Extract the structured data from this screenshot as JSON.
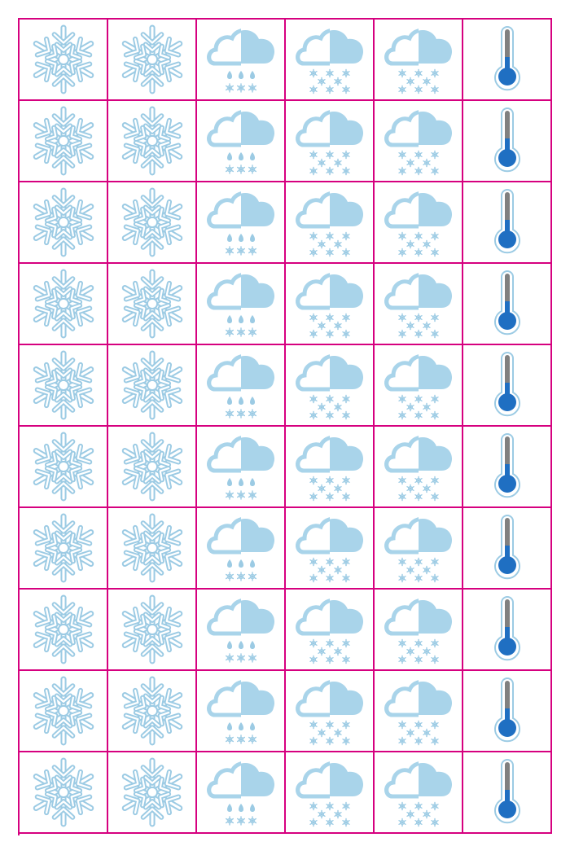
{
  "sheet": {
    "rows": 10,
    "columns": [
      {
        "icon": "snowflake-icon"
      },
      {
        "icon": "snowflake-icon"
      },
      {
        "icon": "cloud-rain-snow-icon"
      },
      {
        "icon": "cloud-heavy-snow-icon"
      },
      {
        "icon": "cloud-heavy-snow-icon"
      },
      {
        "icon": "thermometer-cold-icon"
      }
    ]
  },
  "colors": {
    "grid_line": "#d6007f",
    "icon_light_blue": "#a9d4ea",
    "icon_outline_blue": "#9ccbe4",
    "thermometer_blue": "#1f6fc2",
    "thermometer_tube_gray": "#808080",
    "background": "#ffffff"
  }
}
